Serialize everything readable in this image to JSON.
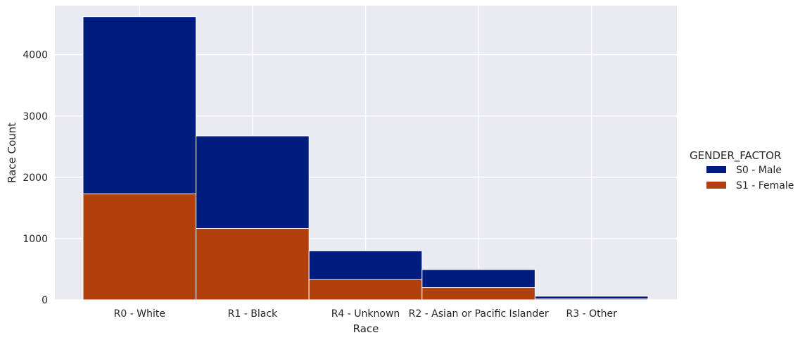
{
  "chart_data": {
    "type": "bar",
    "stacked": true,
    "categories": [
      "R0 - White",
      "R1 - Black",
      "R4 - Unknown",
      "R2 - Asian or Pacific Islander",
      "R3 - Other"
    ],
    "series": [
      {
        "name": "S1 - Female",
        "color": "#b1400d",
        "values": [
          1730,
          1165,
          330,
          200,
          15
        ]
      },
      {
        "name": "S0 - Male",
        "color": "#001c7f",
        "values": [
          2890,
          1510,
          470,
          295,
          45
        ]
      }
    ],
    "xlabel": "Race",
    "ylabel": "Race Count",
    "ylim": [
      0,
      4800
    ],
    "yticks": [
      0,
      1000,
      2000,
      3000,
      4000
    ],
    "grid": true,
    "background": "#eaeaf2",
    "legend": {
      "title": "GENDER_FACTOR",
      "placement": "right",
      "entries": [
        {
          "name": "S0 - Male",
          "color": "#001c7f"
        },
        {
          "name": "S1 - Female",
          "color": "#b1400d"
        }
      ]
    }
  }
}
